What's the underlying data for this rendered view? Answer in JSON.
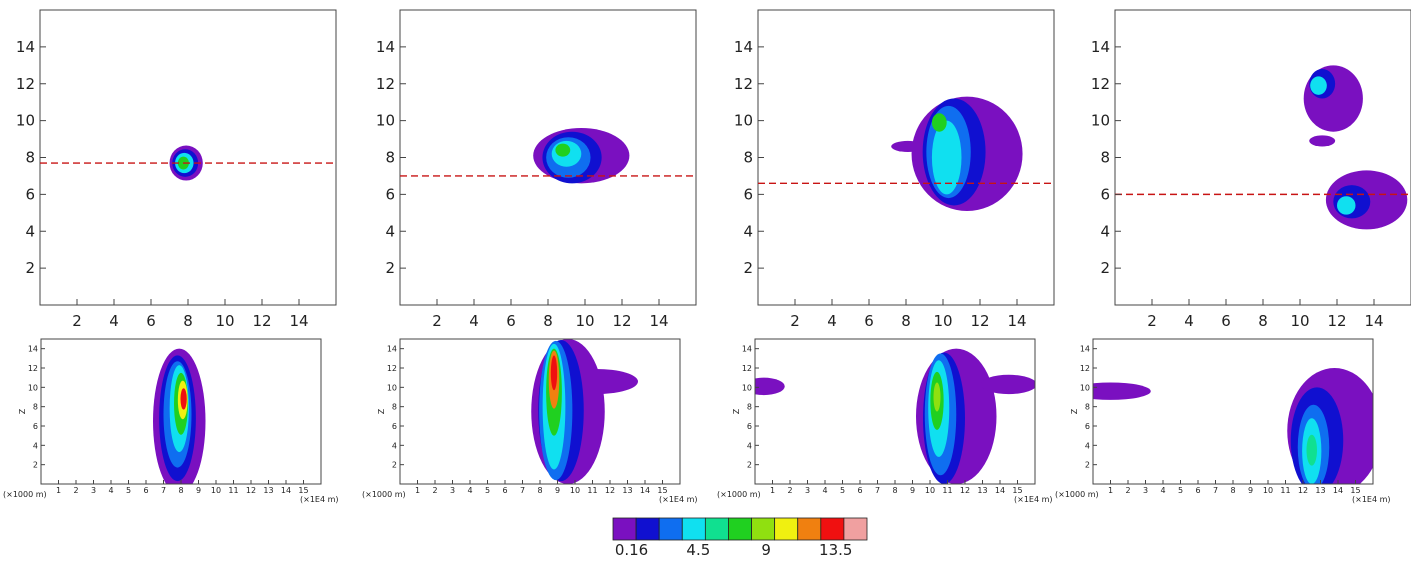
{
  "chart_data": {
    "type": "heatmap",
    "colors": [
      "#7a10c0",
      "#1010d0",
      "#0f6ef0",
      "#10e0f0",
      "#10e090",
      "#20d020",
      "#90e010",
      "#f0f010",
      "#f08010",
      "#f01010",
      "#f0a0a0"
    ],
    "colorbar": {
      "labels": [
        "0.16",
        "4.5",
        "9",
        "13.5"
      ]
    },
    "top_panels": {
      "xticks": [
        "2",
        "4",
        "6",
        "8",
        "10",
        "12",
        "14"
      ],
      "yticks": [
        "2",
        "4",
        "6",
        "8",
        "10",
        "12",
        "14"
      ],
      "xlim": [
        0,
        16
      ],
      "ylim": [
        0,
        16
      ]
    },
    "bottom_panels": {
      "xticks": [
        "1",
        "2",
        "3",
        "4",
        "5",
        "6",
        "7",
        "8",
        "9",
        "10",
        "11",
        "12",
        "13",
        "14",
        "15"
      ],
      "yticks": [
        "2",
        "4",
        "6",
        "8",
        "10",
        "12",
        "14"
      ],
      "ylabel": "Z",
      "x_unit": "(×1E4 m)",
      "y_unit": "(×1000 m)",
      "xlim": [
        0,
        16
      ],
      "ylim": [
        0,
        15
      ]
    },
    "panels": [
      {
        "section_y": 7.7,
        "plan": [
          {
            "x": 7.9,
            "y": 7.7,
            "rx": 0.9,
            "ry": 0.95,
            "level": 0
          },
          {
            "x": 7.85,
            "y": 7.7,
            "rx": 0.7,
            "ry": 0.75,
            "level": 1
          },
          {
            "x": 7.8,
            "y": 7.7,
            "rx": 0.5,
            "ry": 0.55,
            "level": 3
          },
          {
            "x": 7.75,
            "y": 7.7,
            "rx": 0.3,
            "ry": 0.35,
            "level": 5
          }
        ],
        "section": [
          {
            "x": 7.9,
            "z": 6.5,
            "rx": 1.5,
            "rz": 7.5,
            "level": 0
          },
          {
            "x": 7.8,
            "z": 6.8,
            "rx": 1.05,
            "rz": 6.5,
            "level": 1
          },
          {
            "x": 7.8,
            "z": 7.2,
            "rx": 0.8,
            "rz": 5.5,
            "level": 2
          },
          {
            "x": 7.9,
            "z": 7.8,
            "rx": 0.55,
            "rz": 4.5,
            "level": 3
          },
          {
            "x": 8.0,
            "z": 8.3,
            "rx": 0.4,
            "rz": 3.2,
            "level": 5
          },
          {
            "x": 8.1,
            "z": 8.7,
            "rx": 0.28,
            "rz": 2.0,
            "level": 7
          },
          {
            "x": 8.15,
            "z": 8.8,
            "rx": 0.18,
            "rz": 1.1,
            "level": 9
          }
        ]
      },
      {
        "section_y": 7.0,
        "plan": [
          {
            "x": 9.8,
            "y": 8.1,
            "rx": 2.6,
            "ry": 1.5,
            "level": 0
          },
          {
            "x": 9.3,
            "y": 8.0,
            "rx": 1.6,
            "ry": 1.4,
            "level": 1
          },
          {
            "x": 9.1,
            "y": 8.0,
            "rx": 1.2,
            "ry": 1.1,
            "level": 2
          },
          {
            "x": 9.0,
            "y": 8.2,
            "rx": 0.8,
            "ry": 0.7,
            "level": 3
          },
          {
            "x": 8.8,
            "y": 8.4,
            "rx": 0.4,
            "ry": 0.35,
            "level": 5
          }
        ],
        "section": [
          {
            "x": 9.6,
            "z": 7.5,
            "rx": 2.1,
            "rz": 7.5,
            "level": 0
          },
          {
            "x": 11.2,
            "z": 10.6,
            "rx": 2.4,
            "rz": 1.3,
            "level": 0
          },
          {
            "x": 9.2,
            "z": 7.6,
            "rx": 1.3,
            "rz": 7.3,
            "level": 1
          },
          {
            "x": 8.9,
            "z": 7.6,
            "rx": 0.95,
            "rz": 7.2,
            "level": 2
          },
          {
            "x": 8.8,
            "z": 8.0,
            "rx": 0.65,
            "rz": 6.5,
            "level": 3
          },
          {
            "x": 8.8,
            "z": 9.5,
            "rx": 0.45,
            "rz": 4.5,
            "level": 5
          },
          {
            "x": 8.8,
            "z": 10.8,
            "rx": 0.3,
            "rz": 3.0,
            "level": 8
          },
          {
            "x": 8.8,
            "z": 11.5,
            "rx": 0.18,
            "rz": 1.8,
            "level": 9
          }
        ]
      },
      {
        "section_y": 6.6,
        "plan": [
          {
            "x": 11.3,
            "y": 8.2,
            "rx": 3.0,
            "ry": 3.1,
            "level": 0
          },
          {
            "x": 8.1,
            "y": 8.6,
            "rx": 0.9,
            "ry": 0.3,
            "level": 0
          },
          {
            "x": 10.6,
            "y": 8.3,
            "rx": 1.7,
            "ry": 2.9,
            "level": 1
          },
          {
            "x": 10.3,
            "y": 8.3,
            "rx": 1.2,
            "ry": 2.5,
            "level": 2
          },
          {
            "x": 10.2,
            "y": 8.0,
            "rx": 0.8,
            "ry": 2.0,
            "level": 3
          },
          {
            "x": 9.8,
            "y": 9.9,
            "rx": 0.4,
            "ry": 0.5,
            "level": 5
          }
        ],
        "section": [
          {
            "x": 11.5,
            "z": 7.0,
            "rx": 2.3,
            "rz": 7.0,
            "level": 0
          },
          {
            "x": 14.5,
            "z": 10.3,
            "rx": 1.6,
            "rz": 1.0,
            "level": 0
          },
          {
            "x": 0.5,
            "z": 10.1,
            "rx": 1.2,
            "rz": 0.9,
            "level": 0
          },
          {
            "x": 10.8,
            "z": 6.8,
            "rx": 1.2,
            "rz": 6.8,
            "level": 1
          },
          {
            "x": 10.6,
            "z": 7.2,
            "rx": 0.9,
            "rz": 6.3,
            "level": 2
          },
          {
            "x": 10.5,
            "z": 7.8,
            "rx": 0.6,
            "rz": 5.0,
            "level": 3
          },
          {
            "x": 10.4,
            "z": 8.6,
            "rx": 0.38,
            "rz": 3.0,
            "level": 5
          },
          {
            "x": 10.4,
            "z": 9.0,
            "rx": 0.2,
            "rz": 1.5,
            "level": 6
          }
        ]
      },
      {
        "section_y": 6.0,
        "plan": [
          {
            "x": 11.8,
            "y": 11.2,
            "rx": 1.6,
            "ry": 1.8,
            "level": 0
          },
          {
            "x": 13.6,
            "y": 5.7,
            "rx": 2.2,
            "ry": 1.6,
            "level": 0
          },
          {
            "x": 11.2,
            "y": 8.9,
            "rx": 0.7,
            "ry": 0.3,
            "level": 0
          },
          {
            "x": 11.2,
            "y": 12.0,
            "rx": 0.7,
            "ry": 0.8,
            "level": 1
          },
          {
            "x": 12.8,
            "y": 5.6,
            "rx": 1.0,
            "ry": 0.9,
            "level": 1
          },
          {
            "x": 11.0,
            "y": 11.9,
            "rx": 0.45,
            "ry": 0.5,
            "level": 3
          },
          {
            "x": 12.5,
            "y": 5.4,
            "rx": 0.5,
            "ry": 0.5,
            "level": 3
          }
        ],
        "section": [
          {
            "x": 13.8,
            "z": 5.5,
            "rx": 2.7,
            "rz": 6.5,
            "level": 0
          },
          {
            "x": 1.0,
            "z": 9.6,
            "rx": 2.3,
            "rz": 0.9,
            "level": 0
          },
          {
            "x": 12.8,
            "z": 4.5,
            "rx": 1.5,
            "rz": 5.5,
            "level": 1
          },
          {
            "x": 12.6,
            "z": 3.8,
            "rx": 0.9,
            "rz": 4.4,
            "level": 2
          },
          {
            "x": 12.5,
            "z": 3.4,
            "rx": 0.55,
            "rz": 3.4,
            "level": 3
          },
          {
            "x": 12.5,
            "z": 3.5,
            "rx": 0.3,
            "rz": 1.6,
            "level": 4
          }
        ]
      }
    ]
  }
}
